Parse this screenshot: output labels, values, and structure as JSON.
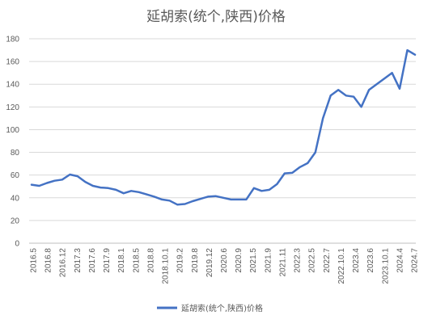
{
  "chart_data": {
    "type": "line",
    "title": "延胡索(统个,陕西)价格",
    "xlabel": "",
    "ylabel": "",
    "ylim": [
      0,
      180
    ],
    "yticks": [
      0,
      20,
      40,
      60,
      80,
      100,
      120,
      140,
      160,
      180
    ],
    "grid": true,
    "legend": "bottom",
    "series_color": "#4472C4",
    "x_tick_labels": [
      "2016.5",
      "2016.8",
      "2016.12",
      "2017.3",
      "2017.6",
      "2017.9",
      "2018.1",
      "2018.5",
      "2018.8",
      "2018.10.1",
      "2019.2",
      "2019.8",
      "2019.12",
      "2020.6",
      "2020.9",
      "2021.5",
      "2021.9",
      "2021.11",
      "2022.3",
      "2022.5",
      "2022.7",
      "2022.10.1",
      "2023.4",
      "2023.6",
      "2023.10.1",
      "2024.4",
      "2024.7"
    ],
    "series": [
      {
        "name": "延胡索(统个,陕西)价格",
        "values": [
          51.5,
          50.5,
          53,
          55,
          56,
          60.5,
          59,
          54,
          50.5,
          49,
          48.5,
          47,
          44,
          46,
          45,
          43,
          41,
          38.5,
          37.5,
          34,
          34.5,
          37,
          39,
          41,
          41.5,
          40,
          38.5,
          38.5,
          38.5,
          48.5,
          46,
          47,
          52,
          61.5,
          62,
          67,
          70.5,
          80,
          110,
          130,
          135,
          130,
          129,
          120,
          135,
          140,
          145,
          150,
          136,
          170,
          166
        ]
      }
    ]
  }
}
